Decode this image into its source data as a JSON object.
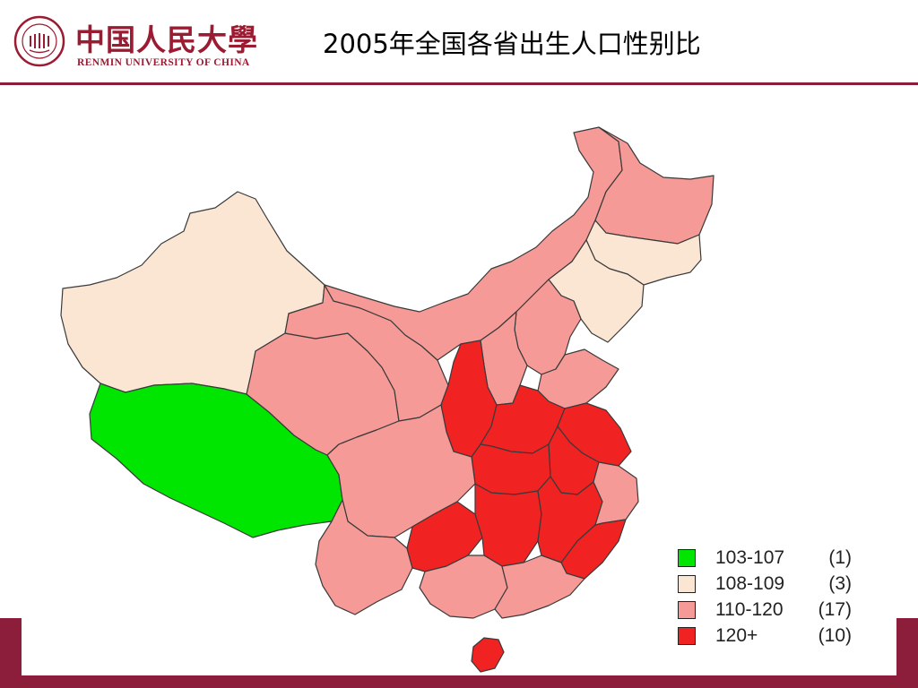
{
  "logo": {
    "cn": "中国人民大學",
    "en": "RENMIN UNIVERSITY OF CHINA"
  },
  "title": "2005年全国各省出生人口性别比",
  "colors": {
    "brand": "#8c1d3b",
    "cat_103_107": "#00e600",
    "cat_108_109": "#fbe6d4",
    "cat_110_120": "#f59a96",
    "cat_120_plus": "#f02222",
    "border": "#3a3a3a"
  },
  "legend": [
    {
      "range": "103-107",
      "count": "(1)",
      "color": "#00e600"
    },
    {
      "range": "108-109",
      "count": "(3)",
      "color": "#fbe6d4"
    },
    {
      "range": "110-120",
      "count": "(17)",
      "color": "#f59a96"
    },
    {
      "range": "120+",
      "count": "(10)",
      "color": "#f02222"
    }
  ]
}
